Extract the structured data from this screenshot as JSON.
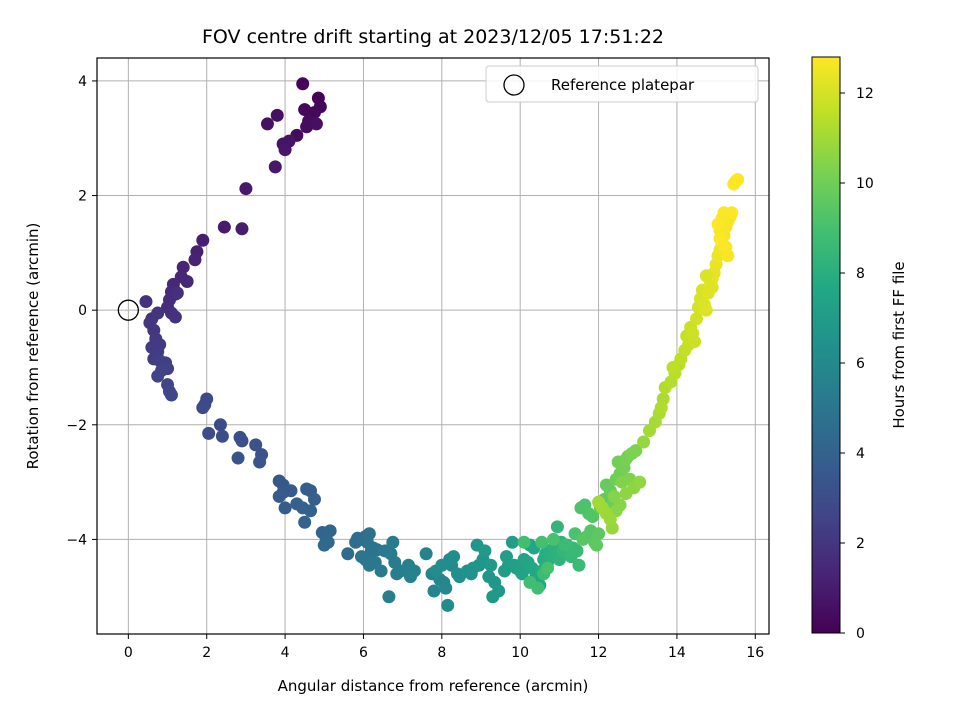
{
  "chart_data": {
    "type": "scatter",
    "title": "FOV centre drift starting at 2023/12/05 17:51:22",
    "xlabel": "Angular distance from reference (arcmin)",
    "ylabel": "Rotation from reference (arcmin)",
    "xlim": [
      -0.8,
      16.35
    ],
    "ylim": [
      -5.65,
      4.4
    ],
    "xticks": [
      0,
      2,
      4,
      6,
      8,
      10,
      12,
      14,
      16
    ],
    "yticks": [
      -4,
      -2,
      0,
      2,
      4
    ],
    "xtick_labels": [
      "0",
      "2",
      "4",
      "6",
      "8",
      "10",
      "12",
      "14",
      "16"
    ],
    "ytick_labels": [
      "−4",
      "−2",
      "0",
      "2",
      "4"
    ],
    "grid": true,
    "colormap": "viridis",
    "colorbar": {
      "label": "Hours from first FF file",
      "range": [
        0,
        12.8
      ],
      "ticks": [
        0,
        2,
        4,
        6,
        8,
        10,
        12
      ],
      "tick_labels": [
        "0",
        "2",
        "4",
        "6",
        "8",
        "10",
        "12"
      ]
    },
    "legend": {
      "position": "top-right",
      "label": "Reference platepar"
    },
    "reference_point": {
      "x": 0,
      "y": 0
    },
    "series": [
      {
        "x": [
          4.45,
          4.85,
          4.9,
          4.5,
          4.75,
          4.6,
          4.3,
          4.55,
          4.8,
          3.8,
          3.55,
          4.1,
          3.95,
          4.0,
          3.75,
          3.0,
          2.45,
          2.9,
          1.9,
          1.75,
          1.7
        ],
        "y": [
          3.95,
          3.7,
          3.55,
          3.5,
          3.45,
          3.3,
          3.05,
          3.2,
          3.25,
          3.4,
          3.25,
          2.95,
          2.9,
          2.8,
          2.5,
          2.12,
          1.45,
          1.42,
          1.22,
          1.02,
          0.88
        ],
        "c": [
          0.1,
          0.15,
          0.2,
          0.25,
          0.3,
          0.35,
          0.4,
          0.45,
          0.5,
          0.55,
          0.6,
          0.65,
          0.7,
          0.75,
          0.8,
          0.9,
          1.0,
          1.05,
          1.1,
          1.15,
          1.2
        ]
      },
      {
        "x": [
          1.4,
          1.35,
          1.5,
          1.15,
          1.1,
          1.2,
          1.05,
          1.0,
          1.25,
          1.1,
          1.2,
          0.45,
          0.6,
          0.75,
          0.55,
          0.65,
          0.7,
          0.8,
          0.6,
          0.75,
          0.65,
          0.8,
          0.95,
          1.0,
          0.85,
          0.75,
          1.0,
          1.05,
          1.1
        ],
        "y": [
          0.75,
          0.58,
          0.5,
          0.45,
          0.32,
          0.28,
          0.18,
          0.05,
          0.3,
          -0.05,
          -0.12,
          0.15,
          -0.15,
          -0.05,
          -0.22,
          -0.35,
          -0.5,
          -0.6,
          -0.65,
          -0.72,
          -0.85,
          -0.88,
          -0.92,
          -1.02,
          -1.05,
          -1.15,
          -1.3,
          -1.42,
          -1.48
        ],
        "c": [
          1.3,
          1.35,
          1.4,
          1.45,
          1.5,
          1.55,
          1.6,
          1.65,
          1.7,
          1.75,
          1.8,
          1.85,
          1.9,
          1.95,
          2.0,
          2.05,
          2.1,
          2.15,
          2.2,
          2.25,
          2.3,
          2.35,
          2.4,
          2.45,
          2.5,
          2.55,
          2.6,
          2.65,
          2.7
        ]
      },
      {
        "x": [
          2.0,
          1.95,
          1.9,
          2.35,
          2.05,
          2.4,
          2.85,
          2.9,
          3.25,
          3.4,
          2.8,
          3.35,
          3.85,
          3.95,
          3.95,
          4.15,
          3.85,
          4.0,
          4.55,
          4.65,
          4.75,
          4.3,
          4.45,
          4.65,
          4.5,
          4.95,
          5.15,
          5.05,
          5.1,
          5.0,
          5.6
        ],
        "y": [
          -1.55,
          -1.65,
          -1.7,
          -2.0,
          -2.15,
          -2.2,
          -2.22,
          -2.28,
          -2.35,
          -2.52,
          -2.58,
          -2.65,
          -2.98,
          -3.05,
          -3.18,
          -3.15,
          -3.25,
          -3.45,
          -3.12,
          -3.15,
          -3.3,
          -3.38,
          -3.45,
          -3.5,
          -3.7,
          -3.88,
          -3.85,
          -4.0,
          -4.05,
          -4.1,
          -4.25
        ],
        "c": [
          2.8,
          2.85,
          2.9,
          2.95,
          3.0,
          3.05,
          3.1,
          3.15,
          3.2,
          3.25,
          3.3,
          3.35,
          3.45,
          3.5,
          3.55,
          3.6,
          3.65,
          3.7,
          3.75,
          3.8,
          3.85,
          3.9,
          3.95,
          4.0,
          4.05,
          4.15,
          4.2,
          4.25,
          4.3,
          4.35,
          4.45
        ]
      },
      {
        "x": [
          5.8,
          5.85,
          5.95,
          6.05,
          6.15,
          6.1,
          6.25,
          6.2,
          6.35,
          5.95,
          6.05,
          6.15,
          6.3,
          6.55,
          6.45,
          6.7,
          6.75,
          6.8,
          6.85,
          6.65,
          6.95,
          7.15,
          7.3,
          7.2,
          7.6,
          7.75,
          7.8,
          7.95,
          8.05,
          8.1,
          8.2,
          8.25,
          8.15,
          7.85,
          8.0,
          8.3,
          8.4,
          8.45,
          8.65,
          8.75,
          8.8,
          8.95,
          9.05,
          8.9,
          9.2,
          9.35,
          9.45,
          9.3,
          9.1,
          9.25,
          9.6,
          9.7,
          9.65,
          9.8
        ],
        "y": [
          -4.05,
          -3.98,
          -4.0,
          -3.95,
          -3.9,
          -4.05,
          -4.15,
          -4.2,
          -4.18,
          -4.3,
          -4.35,
          -4.45,
          -4.4,
          -4.2,
          -4.55,
          -4.25,
          -4.05,
          -4.4,
          -4.6,
          -5.0,
          -4.55,
          -4.45,
          -4.55,
          -4.65,
          -4.25,
          -4.6,
          -4.9,
          -4.7,
          -4.75,
          -4.85,
          -4.35,
          -4.45,
          -5.15,
          -4.55,
          -4.45,
          -4.3,
          -4.6,
          -4.65,
          -4.55,
          -4.6,
          -4.5,
          -4.45,
          -4.35,
          -4.1,
          -4.65,
          -4.75,
          -4.9,
          -5.0,
          -4.2,
          -4.45,
          -4.55,
          -4.45,
          -4.3,
          -4.05
        ],
        "c": [
          4.5,
          4.55,
          4.6,
          4.65,
          4.7,
          4.75,
          4.8,
          4.85,
          4.9,
          4.95,
          5.0,
          5.05,
          5.1,
          5.15,
          5.2,
          5.25,
          5.3,
          5.35,
          5.4,
          5.45,
          5.5,
          5.55,
          5.6,
          5.65,
          5.7,
          5.75,
          5.8,
          5.85,
          5.9,
          5.95,
          6.0,
          6.05,
          6.1,
          6.15,
          6.2,
          6.25,
          6.3,
          6.35,
          6.4,
          6.45,
          6.5,
          6.55,
          6.6,
          6.65,
          6.7,
          6.75,
          6.8,
          6.85,
          6.9,
          6.95,
          7.0,
          7.05,
          7.1,
          7.15
        ]
      },
      {
        "x": [
          9.85,
          9.9,
          10.0,
          10.05,
          10.1,
          10.2,
          10.25,
          10.35,
          10.3,
          10.4,
          10.45,
          10.5,
          10.55,
          10.6,
          10.65,
          10.7,
          10.75,
          10.8,
          10.85,
          10.9,
          10.95,
          11.0,
          11.05,
          10.95,
          11.1,
          11.2,
          11.3,
          11.35,
          11.45,
          11.5,
          11.15,
          10.6,
          10.45,
          10.25,
          10.1,
          10.55,
          10.7,
          10.85,
          11.4,
          11.55,
          11.65,
          11.75,
          11.85,
          11.8,
          11.7,
          11.6,
          11.9,
          12.0,
          11.95
        ],
        "y": [
          -4.45,
          -4.5,
          -4.55,
          -4.6,
          -4.35,
          -4.4,
          -4.1,
          -4.15,
          -4.5,
          -4.65,
          -4.7,
          -4.8,
          -4.55,
          -4.35,
          -4.25,
          -4.4,
          -4.2,
          -4.3,
          -4.15,
          -4.1,
          -4.25,
          -4.35,
          -4.05,
          -3.78,
          -4.2,
          -4.1,
          -4.3,
          -4.15,
          -4.2,
          -4.45,
          -4.1,
          -4.6,
          -4.85,
          -4.75,
          -4.05,
          -4.05,
          -4.5,
          -4.0,
          -3.9,
          -3.45,
          -3.4,
          -3.55,
          -3.6,
          -3.85,
          -3.95,
          -4.0,
          -4.05,
          -3.9,
          -4.1
        ],
        "c": [
          7.2,
          7.25,
          7.3,
          7.35,
          7.4,
          7.45,
          7.5,
          7.55,
          7.6,
          7.65,
          7.7,
          7.75,
          7.8,
          7.85,
          7.9,
          7.95,
          8.0,
          8.05,
          8.1,
          8.15,
          8.2,
          8.25,
          8.3,
          8.35,
          8.4,
          8.45,
          8.5,
          8.55,
          8.6,
          8.65,
          8.7,
          8.75,
          8.8,
          8.85,
          8.9,
          8.95,
          9.0,
          9.05,
          9.1,
          9.15,
          9.2,
          9.25,
          9.3,
          9.35,
          9.4,
          9.45,
          9.5,
          9.55,
          9.6
        ]
      },
      {
        "x": [
          12.05,
          12.15,
          12.2,
          12.3,
          12.35,
          12.25,
          12.45,
          12.55,
          12.5,
          12.65,
          12.7,
          12.75,
          12.85,
          12.95,
          12.8,
          12.6,
          12.4,
          12.55,
          12.45,
          12.7,
          12.9,
          13.05,
          13.15,
          12.35,
          12.3,
          12.2,
          12.1,
          12.0,
          13.3,
          13.45,
          13.55,
          13.65,
          13.6,
          13.7,
          13.85,
          13.95,
          14.05,
          13.9
        ],
        "y": [
          -3.45,
          -3.3,
          -3.05,
          -3.15,
          -3.4,
          -3.55,
          -2.95,
          -2.85,
          -2.65,
          -2.75,
          -2.6,
          -2.55,
          -2.5,
          -2.45,
          -2.95,
          -3.0,
          -3.25,
          -3.4,
          -3.5,
          -3.2,
          -3.1,
          -3.0,
          -2.3,
          -3.8,
          -3.65,
          -3.55,
          -3.45,
          -3.35,
          -2.1,
          -1.95,
          -1.8,
          -1.55,
          -1.7,
          -1.35,
          -1.25,
          -1.1,
          -0.95,
          -1.0
        ],
        "c": [
          9.65,
          9.7,
          9.75,
          9.8,
          9.85,
          9.9,
          9.95,
          10.0,
          10.05,
          10.1,
          10.15,
          10.2,
          10.25,
          10.3,
          10.35,
          10.4,
          10.45,
          10.5,
          10.55,
          10.6,
          10.65,
          10.7,
          10.75,
          10.8,
          10.85,
          10.9,
          10.95,
          11.0,
          11.05,
          11.1,
          11.15,
          11.2,
          11.25,
          11.3,
          11.35,
          11.4,
          11.45,
          11.5
        ]
      },
      {
        "x": [
          14.1,
          14.2,
          14.3,
          14.25,
          14.35,
          14.45,
          14.4,
          14.5,
          14.55,
          14.6,
          14.65,
          14.7,
          14.75,
          14.8,
          14.85,
          14.9,
          14.95,
          15.0,
          15.05,
          15.1,
          15.15,
          15.2,
          15.1,
          15.25,
          15.3,
          15.35,
          15.15,
          15.2,
          15.05,
          15.1,
          15.25,
          15.4,
          15.5,
          15.55,
          15.45,
          15.3,
          14.75,
          14.9
        ],
        "y": [
          -0.85,
          -0.7,
          -0.6,
          -0.45,
          -0.3,
          -0.55,
          -0.4,
          -0.15,
          0.05,
          0.2,
          0.35,
          0.1,
          0.0,
          0.3,
          0.45,
          0.55,
          0.65,
          0.8,
          0.95,
          1.05,
          1.15,
          1.3,
          1.4,
          1.45,
          1.55,
          1.62,
          1.6,
          1.7,
          1.5,
          1.25,
          1.1,
          1.7,
          2.25,
          2.28,
          2.2,
          0.95,
          0.6,
          0.4
        ],
        "c": [
          11.55,
          11.6,
          11.65,
          11.7,
          11.75,
          11.8,
          11.85,
          11.9,
          11.95,
          12.0,
          12.05,
          12.1,
          12.15,
          12.2,
          12.25,
          12.3,
          12.35,
          12.4,
          12.45,
          12.5,
          12.55,
          12.6,
          12.62,
          12.65,
          12.68,
          12.7,
          12.72,
          12.74,
          12.75,
          12.76,
          12.77,
          12.78,
          12.79,
          12.8,
          12.8,
          12.7,
          12.1,
          12.2
        ]
      }
    ]
  }
}
